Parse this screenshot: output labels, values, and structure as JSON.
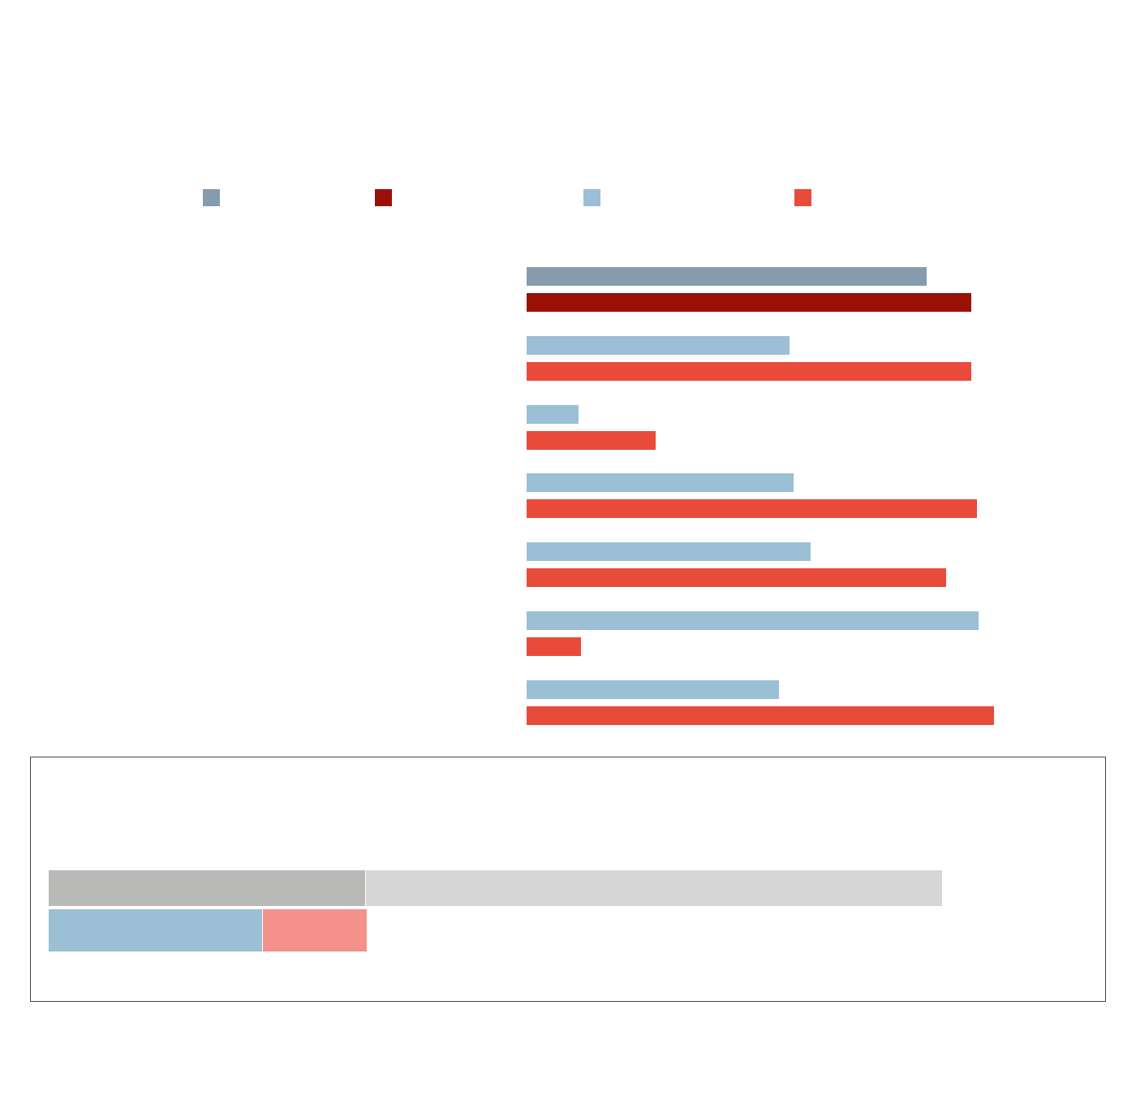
{
  "chart_data": [
    {
      "type": "bar",
      "orientation": "horizontal",
      "legend": {
        "placement": "top",
        "entries": [
          {
            "color": "#869cae"
          },
          {
            "color": "#9b1006"
          },
          {
            "color": "#9bbfd5"
          },
          {
            "color": "#e84b3a"
          }
        ]
      },
      "categories": [
        "",
        "",
        "",
        "",
        "",
        "",
        ""
      ],
      "groups": [
        {
          "values": [
            493,
            548
          ],
          "colors": [
            "#869cae",
            "#9b1006"
          ]
        },
        {
          "values": [
            324,
            548
          ],
          "colors": [
            "#9bbfd5",
            "#e84b3a"
          ]
        },
        {
          "values": [
            64,
            159
          ],
          "colors": [
            "#9bbfd5",
            "#e84b3a"
          ]
        },
        {
          "values": [
            329,
            555
          ],
          "colors": [
            "#9bbfd5",
            "#e84b3a"
          ]
        },
        {
          "values": [
            350,
            517
          ],
          "colors": [
            "#9bbfd5",
            "#e84b3a"
          ]
        },
        {
          "values": [
            557,
            67
          ],
          "colors": [
            "#9bbfd5",
            "#e84b3a"
          ]
        },
        {
          "values": [
            311,
            576
          ],
          "colors": [
            "#9bbfd5",
            "#e84b3a"
          ]
        }
      ],
      "xlim": [
        0,
        700
      ],
      "grid": false
    },
    {
      "type": "bar",
      "orientation": "horizontal",
      "stacked": true,
      "rows": [
        {
          "segments": [
            {
              "value": 35.4,
              "color": "#b9b9b8"
            },
            {
              "value": 64.6,
              "color": "#d6d6d6"
            }
          ]
        },
        {
          "segments": [
            {
              "value": 23.9,
              "color": "#9bbfd5"
            },
            {
              "value": 11.7,
              "color": "#f3918a"
            }
          ]
        }
      ],
      "xlim": [
        0,
        100
      ]
    }
  ]
}
